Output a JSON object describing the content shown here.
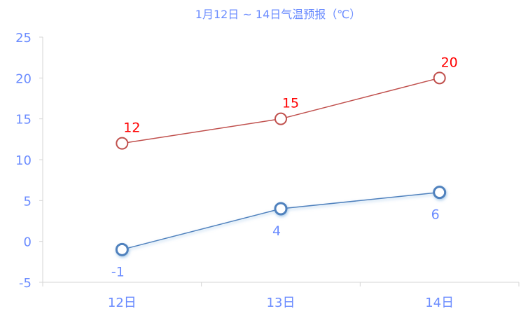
{
  "chart_data": {
    "type": "line",
    "title": "1月12日 ~ 14日气温预报（℃）",
    "categories": [
      "12日",
      "13日",
      "14日"
    ],
    "series": [
      {
        "values": [
          12,
          15,
          20
        ],
        "color": "#c0504d",
        "label_color": "#ff0000",
        "label_position": "top"
      },
      {
        "values": [
          -1,
          4,
          6
        ],
        "color": "#4f81bd",
        "label_color": "#6b8cff",
        "label_position": "bottom"
      }
    ],
    "ylim": [
      -5,
      25
    ],
    "yticks": [
      -5,
      0,
      5,
      10,
      15,
      20,
      25
    ],
    "grid": false,
    "legend": "none",
    "axis_label_color": "#6b8cff"
  }
}
